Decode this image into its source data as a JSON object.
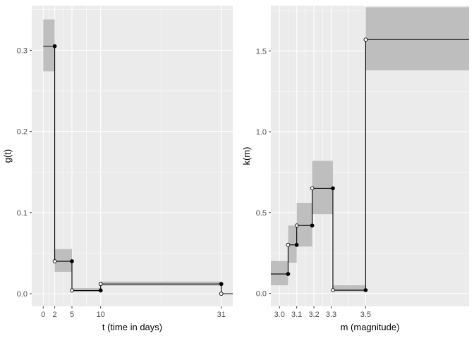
{
  "chart_data": [
    {
      "type": "step",
      "xlabel": "t (time in days)",
      "ylabel": "g(t)",
      "xlim": [
        -2,
        33
      ],
      "ylim": [
        -0.0155,
        0.355
      ],
      "xticks": [
        0,
        2,
        5,
        10,
        31
      ],
      "xtick_labels": [
        "0",
        "2",
        "5",
        "10",
        "31"
      ],
      "yticks": [
        0.0,
        0.1,
        0.2,
        0.3
      ],
      "ytick_labels": [
        "0.0",
        "0.1",
        "0.2",
        "0.3"
      ],
      "grid": true,
      "steps": [
        {
          "x0": 0,
          "x1": 2,
          "value": 0.305,
          "ci_low": 0.274,
          "ci_high": 0.338
        },
        {
          "x0": 2,
          "x1": 5,
          "value": 0.04,
          "ci_low": 0.027,
          "ci_high": 0.055
        },
        {
          "x0": 5,
          "x1": 10,
          "value": 0.004,
          "ci_low": 0.002,
          "ci_high": 0.007
        },
        {
          "x0": 10,
          "x1": 31,
          "value": 0.012,
          "ci_low": 0.01,
          "ci_high": 0.015
        },
        {
          "x0": 31,
          "x1": 33,
          "value": 0.0,
          "ci_low": null,
          "ci_high": null
        }
      ],
      "points": [
        {
          "x": 2,
          "y": 0.305,
          "filled": true
        },
        {
          "x": 2,
          "y": 0.04,
          "filled": false
        },
        {
          "x": 5,
          "y": 0.04,
          "filled": true
        },
        {
          "x": 5,
          "y": 0.004,
          "filled": false
        },
        {
          "x": 10,
          "y": 0.004,
          "filled": true
        },
        {
          "x": 10,
          "y": 0.012,
          "filled": false
        },
        {
          "x": 31,
          "y": 0.012,
          "filled": true
        },
        {
          "x": 31,
          "y": 0.0,
          "filled": false
        }
      ]
    },
    {
      "type": "step",
      "xlabel": "m (magnitude)",
      "ylabel": "k(m)",
      "xlim": [
        2.95,
        4.1
      ],
      "ylim": [
        -0.08,
        1.78
      ],
      "xticks": [
        3.0,
        3.1,
        3.2,
        3.3,
        3.5
      ],
      "xtick_labels": [
        "3.0",
        "3.1",
        "3.2",
        "3.3",
        "3.5"
      ],
      "yticks": [
        0.0,
        0.5,
        1.0,
        1.5
      ],
      "ytick_labels": [
        "0.0",
        "0.5",
        "1.0",
        "1.5"
      ],
      "grid": true,
      "steps": [
        {
          "x0": 2.95,
          "x1": 3.05,
          "value": 0.12,
          "ci_low": 0.05,
          "ci_high": 0.2
        },
        {
          "x0": 3.05,
          "x1": 3.1,
          "value": 0.3,
          "ci_low": 0.19,
          "ci_high": 0.42
        },
        {
          "x0": 3.1,
          "x1": 3.19,
          "value": 0.42,
          "ci_low": 0.29,
          "ci_high": 0.56
        },
        {
          "x0": 3.19,
          "x1": 3.31,
          "value": 0.65,
          "ci_low": 0.49,
          "ci_high": 0.82
        },
        {
          "x0": 3.31,
          "x1": 3.5,
          "value": 0.02,
          "ci_low": 0.01,
          "ci_high": 0.05
        },
        {
          "x0": 3.5,
          "x1": 4.1,
          "value": 1.57,
          "ci_low": 1.38,
          "ci_high": 1.77
        }
      ],
      "points": [
        {
          "x": 3.05,
          "y": 0.12,
          "filled": true
        },
        {
          "x": 3.05,
          "y": 0.3,
          "filled": false
        },
        {
          "x": 3.1,
          "y": 0.3,
          "filled": true
        },
        {
          "x": 3.1,
          "y": 0.42,
          "filled": false
        },
        {
          "x": 3.19,
          "y": 0.42,
          "filled": true
        },
        {
          "x": 3.19,
          "y": 0.65,
          "filled": false
        },
        {
          "x": 3.31,
          "y": 0.65,
          "filled": true
        },
        {
          "x": 3.31,
          "y": 0.02,
          "filled": false
        },
        {
          "x": 3.5,
          "y": 0.02,
          "filled": true
        },
        {
          "x": 3.5,
          "y": 1.57,
          "filled": false
        }
      ]
    }
  ],
  "colors": {
    "panel_background": "#ebebeb",
    "grid_major": "#ffffff",
    "ci_band": "#bebebe",
    "line": "#000000"
  }
}
